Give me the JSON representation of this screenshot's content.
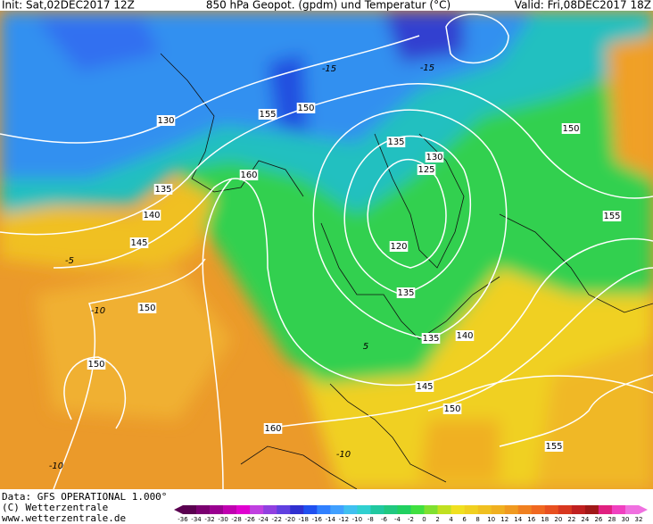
{
  "header": {
    "init": "Init: Sat,02DEC2017 12Z",
    "title": "850 hPa Geopot. (gpdm) und Temperatur (°C)",
    "valid": "Valid: Fri,08DEC2017 18Z"
  },
  "map": {
    "geopotential_labels": [
      130,
      155,
      150,
      135,
      130,
      125,
      120,
      135,
      135,
      140,
      145,
      150,
      150,
      155,
      160,
      135,
      140,
      145,
      150,
      150,
      160,
      155
    ],
    "temperature_labels": [
      -15,
      -15,
      -5,
      -10,
      -10,
      -10,
      5
    ]
  },
  "colorbar": {
    "labels": [
      -36,
      -34,
      -32,
      -30,
      -28,
      -26,
      -24,
      -22,
      -20,
      -18,
      -16,
      -14,
      -12,
      -10,
      -8,
      -6,
      -4,
      -2,
      0,
      2,
      4,
      6,
      8,
      10,
      12,
      14,
      16,
      18,
      20,
      22,
      24,
      26,
      28,
      30,
      32
    ],
    "colors": [
      "#5a0050",
      "#7a0070",
      "#9a0090",
      "#c000b0",
      "#e000d0",
      "#c040e0",
      "#9040e0",
      "#6040e0",
      "#3030d0",
      "#2050f0",
      "#3080ff",
      "#40a0ff",
      "#40c0f0",
      "#30d0d0",
      "#20c8a0",
      "#20c880",
      "#20d060",
      "#40e040",
      "#80e030",
      "#c0e020",
      "#f0e020",
      "#f0d020",
      "#f0c020",
      "#f0b020",
      "#f09a20",
      "#f08020",
      "#f06820",
      "#e85020",
      "#d83820",
      "#c02020",
      "#a01818",
      "#e02080",
      "#f040c0",
      "#f070e0"
    ]
  },
  "footer": {
    "data": "Data: GFS OPERATIONAL 1.000°",
    "copyright": "(C) Wetterzentrale",
    "url": "www.wetterzentrale.de"
  }
}
